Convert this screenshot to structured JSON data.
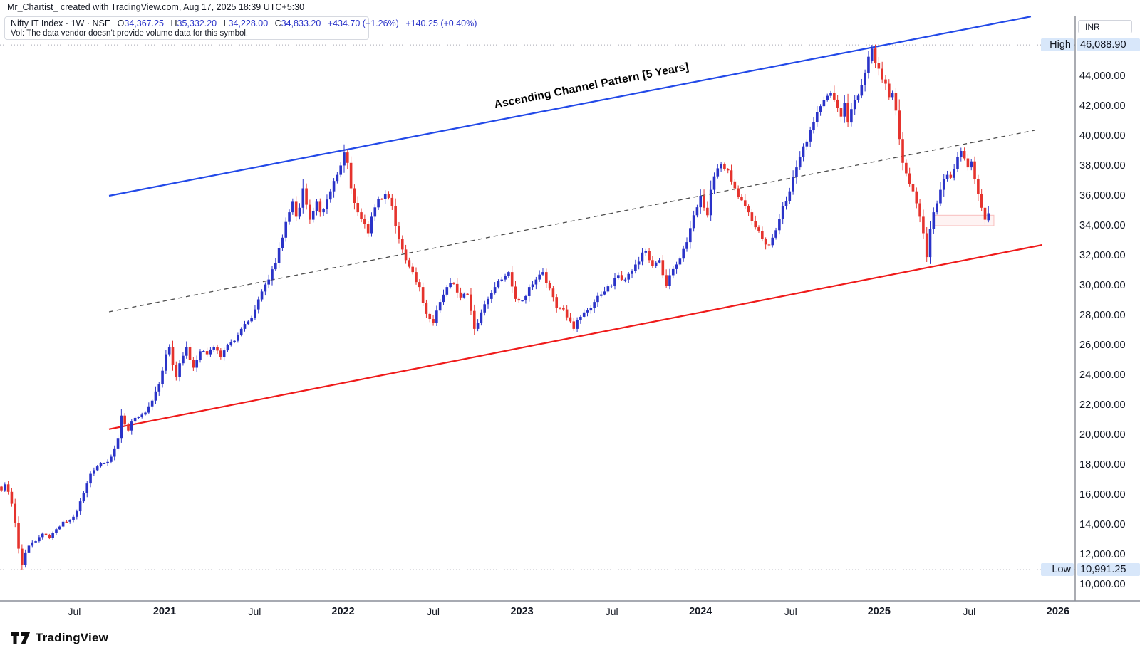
{
  "attribution": "Mr_Chartist_ created with TradingView.com, Aug 17, 2025 18:39 UTC+5:30",
  "legend": {
    "symbol": "Nifty IT Index",
    "separator": "·",
    "timeframe": "1W",
    "exchange": "NSE",
    "o_key": "O",
    "h_key": "H",
    "l_key": "L",
    "c_key": "C",
    "o": "34,367.25",
    "h": "35,332.20",
    "l": "34,228.00",
    "c": "34,833.20",
    "change_abs": "+434.70 (+1.26%)",
    "change_week": "+140.25 (+0.40%)",
    "vol_note": "Vol: The data vendor doesn't provide volume data for this symbol."
  },
  "annotation": "Ascending Channel Pattern [5 Years]",
  "watermark": "TradingView",
  "price_axis": {
    "currency": "INR",
    "high_label": "High",
    "low_label": "Low",
    "high_value": "46,088.90",
    "low_value": "10,991.25",
    "ticks": [
      "44,000.00",
      "42,000.00",
      "40,000.00",
      "38,000.00",
      "36,000.00",
      "34,000.00",
      "32,000.00",
      "30,000.00",
      "28,000.00",
      "26,000.00",
      "24,000.00",
      "22,000.00",
      "20,000.00",
      "18,000.00",
      "16,000.00",
      "14,000.00",
      "12,000.00",
      "10,000.00"
    ],
    "tick_values": [
      44000,
      42000,
      40000,
      38000,
      36000,
      34000,
      32000,
      30000,
      28000,
      26000,
      24000,
      22000,
      20000,
      18000,
      16000,
      14000,
      12000,
      10000
    ]
  },
  "time_axis": {
    "ticks": [
      {
        "label": "Jul",
        "week": 21.3,
        "bold": false
      },
      {
        "label": "2021",
        "week": 47.6,
        "bold": true
      },
      {
        "label": "Jul",
        "week": 73.9,
        "bold": false
      },
      {
        "label": "2022",
        "week": 99.7,
        "bold": true
      },
      {
        "label": "Jul",
        "week": 126.0,
        "bold": false
      },
      {
        "label": "2023",
        "week": 151.9,
        "bold": true
      },
      {
        "label": "Jul",
        "week": 178.1,
        "bold": false
      },
      {
        "label": "2024",
        "week": 204.0,
        "bold": true
      },
      {
        "label": "Jul",
        "week": 230.3,
        "bold": false
      },
      {
        "label": "2025",
        "week": 256.1,
        "bold": true
      },
      {
        "label": "Jul",
        "week": 282.4,
        "bold": false
      },
      {
        "label": "2026",
        "week": 308.3,
        "bold": true
      }
    ]
  },
  "colors": {
    "up_candle": "#2a33c8",
    "down_candle": "#e5332d",
    "channel_top": "#2249e8",
    "channel_bottom": "#ef1a1a",
    "channel_mid": "#4d4d4d",
    "hl_dotted": "#a6a9b3",
    "badge_bg": "#d8e7fa",
    "zone_fill": "rgba(239,83,80,0.07)",
    "zone_border": "rgba(239,83,80,0.35)",
    "axis_line": "#555a64",
    "time_sep": "#8a8e98"
  },
  "chart_data": {
    "type": "candlestick",
    "symbol": "Nifty IT Index",
    "exchange": "NSE",
    "timeframe": "1W",
    "currency": "INR",
    "all_time_high": 46088.9,
    "all_time_low": 10991.25,
    "last_candle": {
      "open": 34367.25,
      "high": 35332.2,
      "low": 34228.0,
      "close": 34833.2,
      "change_abs": 434.7,
      "change_pct": 1.26
    },
    "week0_start_date": "2020-02-03",
    "weeks_total": 289,
    "y_axis": {
      "min": 10000,
      "max": 46500,
      "tick_step": 2000
    },
    "anchors_weekly_close": [
      [
        0,
        16300
      ],
      [
        1,
        16700
      ],
      [
        2,
        16200
      ],
      [
        3,
        15400
      ],
      [
        4,
        14100
      ],
      [
        5,
        12400
      ],
      [
        6,
        11300
      ],
      [
        7,
        12100
      ],
      [
        8,
        12600
      ],
      [
        10,
        12900
      ],
      [
        12,
        13400
      ],
      [
        14,
        13100
      ],
      [
        16,
        13700
      ],
      [
        18,
        14200
      ],
      [
        20,
        14300
      ],
      [
        22,
        14900
      ],
      [
        24,
        16100
      ],
      [
        26,
        17400
      ],
      [
        28,
        17900
      ],
      [
        29,
        18100
      ],
      [
        31,
        18200
      ],
      [
        33,
        19100
      ],
      [
        34,
        19800
      ],
      [
        35,
        21300
      ],
      [
        36,
        20700
      ],
      [
        37,
        20300
      ],
      [
        38,
        20900
      ],
      [
        40,
        21200
      ],
      [
        42,
        21500
      ],
      [
        44,
        22300
      ],
      [
        46,
        23400
      ],
      [
        47,
        24300
      ],
      [
        48,
        25400
      ],
      [
        49,
        25900
      ],
      [
        50,
        24700
      ],
      [
        51,
        23900
      ],
      [
        52,
        24800
      ],
      [
        53,
        25300
      ],
      [
        54,
        25900
      ],
      [
        55,
        25000
      ],
      [
        56,
        24500
      ],
      [
        58,
        25600
      ],
      [
        60,
        25400
      ],
      [
        62,
        25900
      ],
      [
        64,
        25200
      ],
      [
        66,
        26000
      ],
      [
        68,
        26300
      ],
      [
        70,
        27100
      ],
      [
        72,
        27600
      ],
      [
        74,
        28400
      ],
      [
        76,
        29600
      ],
      [
        78,
        30400
      ],
      [
        80,
        31500
      ],
      [
        82,
        33200
      ],
      [
        84,
        34900
      ],
      [
        85,
        35600
      ],
      [
        86,
        34600
      ],
      [
        87,
        35200
      ],
      [
        88,
        36500
      ],
      [
        89,
        35400
      ],
      [
        90,
        34400
      ],
      [
        92,
        35600
      ],
      [
        93,
        34900
      ],
      [
        94,
        35100
      ],
      [
        96,
        36300
      ],
      [
        98,
        37400
      ],
      [
        100,
        38900
      ],
      [
        101,
        38200
      ],
      [
        102,
        36500
      ],
      [
        104,
        34900
      ],
      [
        106,
        34100
      ],
      [
        107,
        33500
      ],
      [
        108,
        34600
      ],
      [
        110,
        35800
      ],
      [
        112,
        36100
      ],
      [
        114,
        35300
      ],
      [
        115,
        34000
      ],
      [
        116,
        33100
      ],
      [
        118,
        31700
      ],
      [
        120,
        30900
      ],
      [
        122,
        29900
      ],
      [
        124,
        28100
      ],
      [
        126,
        27500
      ],
      [
        128,
        28900
      ],
      [
        130,
        29900
      ],
      [
        132,
        30100
      ],
      [
        134,
        29200
      ],
      [
        136,
        29400
      ],
      [
        137,
        28300
      ],
      [
        138,
        27100
      ],
      [
        140,
        28200
      ],
      [
        142,
        29100
      ],
      [
        144,
        29900
      ],
      [
        146,
        30400
      ],
      [
        148,
        30900
      ],
      [
        150,
        29100
      ],
      [
        152,
        29000
      ],
      [
        154,
        29900
      ],
      [
        156,
        30400
      ],
      [
        158,
        30900
      ],
      [
        160,
        29800
      ],
      [
        162,
        28500
      ],
      [
        164,
        28400
      ],
      [
        166,
        27600
      ],
      [
        167,
        27100
      ],
      [
        168,
        27700
      ],
      [
        170,
        28200
      ],
      [
        172,
        28500
      ],
      [
        174,
        29300
      ],
      [
        176,
        29600
      ],
      [
        178,
        30000
      ],
      [
        180,
        30700
      ],
      [
        182,
        30400
      ],
      [
        184,
        31000
      ],
      [
        186,
        31600
      ],
      [
        187,
        32200
      ],
      [
        188,
        32300
      ],
      [
        189,
        31700
      ],
      [
        190,
        31300
      ],
      [
        192,
        31700
      ],
      [
        193,
        30700
      ],
      [
        194,
        30000
      ],
      [
        196,
        31100
      ],
      [
        198,
        31800
      ],
      [
        200,
        32900
      ],
      [
        202,
        34700
      ],
      [
        204,
        36000
      ],
      [
        205,
        35200
      ],
      [
        206,
        34700
      ],
      [
        207,
        36400
      ],
      [
        208,
        37300
      ],
      [
        210,
        38100
      ],
      [
        212,
        37700
      ],
      [
        214,
        36500
      ],
      [
        216,
        35700
      ],
      [
        218,
        34900
      ],
      [
        220,
        33900
      ],
      [
        222,
        33100
      ],
      [
        224,
        32700
      ],
      [
        226,
        33700
      ],
      [
        228,
        35300
      ],
      [
        230,
        36300
      ],
      [
        232,
        37900
      ],
      [
        234,
        39300
      ],
      [
        236,
        40400
      ],
      [
        238,
        41600
      ],
      [
        240,
        42400
      ],
      [
        242,
        42900
      ],
      [
        244,
        41900
      ],
      [
        245,
        41300
      ],
      [
        246,
        42200
      ],
      [
        247,
        40900
      ],
      [
        248,
        41800
      ],
      [
        250,
        42700
      ],
      [
        252,
        44200
      ],
      [
        253,
        45300
      ],
      [
        254,
        45850
      ],
      [
        255,
        44900
      ],
      [
        256,
        44500
      ],
      [
        258,
        43500
      ],
      [
        259,
        42600
      ],
      [
        260,
        42900
      ],
      [
        261,
        41700
      ],
      [
        262,
        39800
      ],
      [
        263,
        38200
      ],
      [
        264,
        37500
      ],
      [
        265,
        36800
      ],
      [
        266,
        36300
      ],
      [
        267,
        35500
      ],
      [
        268,
        34600
      ],
      [
        269,
        33500
      ],
      [
        270,
        31900
      ],
      [
        271,
        33800
      ],
      [
        272,
        34900
      ],
      [
        273,
        35500
      ],
      [
        274,
        36400
      ],
      [
        275,
        37100
      ],
      [
        276,
        37400
      ],
      [
        277,
        37200
      ],
      [
        278,
        37800
      ],
      [
        279,
        38600
      ],
      [
        280,
        39000
      ],
      [
        281,
        38500
      ],
      [
        282,
        37900
      ],
      [
        283,
        38300
      ],
      [
        284,
        37100
      ],
      [
        285,
        36100
      ],
      [
        286,
        35200
      ],
      [
        287,
        34400
      ],
      [
        288,
        34833.2
      ]
    ],
    "overrides": [
      {
        "week": 6,
        "low": 10991.25
      },
      {
        "week": 254,
        "open": 45000,
        "close": 45850,
        "high": 46088.9
      },
      {
        "week": 288,
        "open": 34367.25,
        "high": 35332.2,
        "low": 34228.0,
        "close": 34833.2
      }
    ],
    "channel": {
      "label": "Ascending Channel Pattern [5 Years]",
      "top": {
        "w1": 31.4,
        "p1": 36000,
        "w2": 300.4,
        "p2": 47990
      },
      "middle": {
        "w1": 31.4,
        "p1": 28240,
        "w2": 301.5,
        "p2": 40380,
        "style": "dashed"
      },
      "bottom": {
        "w1": 31.4,
        "p1": 20390,
        "w2": 303.7,
        "p2": 32715
      }
    },
    "support_zone": {
      "w1": 272,
      "w2": 289.6,
      "price_top": 34700,
      "price_bottom": 34000
    },
    "high_marker": {
      "price": 46088.9,
      "label": "High"
    },
    "low_marker": {
      "price": 10991.25,
      "label": "Low"
    }
  }
}
